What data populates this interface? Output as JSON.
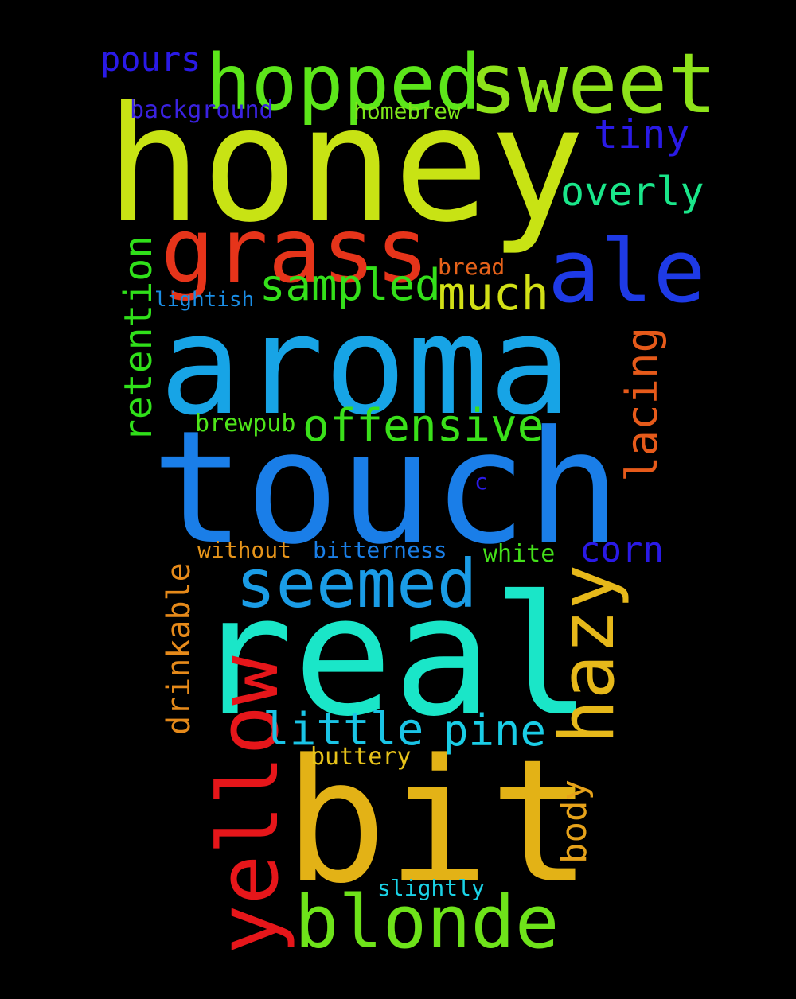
{
  "words": {
    "honey": {
      "text": "honey",
      "color": "#c8e314"
    },
    "aroma": {
      "text": "aroma",
      "color": "#17a4e6"
    },
    "touch": {
      "text": "touch",
      "color": "#1a7ee8"
    },
    "real": {
      "text": "real",
      "color": "#1ae6c8"
    },
    "bit": {
      "text": "bit",
      "color": "#e3b216"
    },
    "sweet": {
      "text": "sweet",
      "color": "#8ee31a"
    },
    "hopped": {
      "text": "hopped",
      "color": "#5ce61a"
    },
    "grass": {
      "text": "grass",
      "color": "#e6341a"
    },
    "ale": {
      "text": "ale",
      "color": "#1e3ae6"
    },
    "yellow": {
      "text": "yellow",
      "color": "#e6161a"
    },
    "blonde": {
      "text": "blonde",
      "color": "#6ee31a"
    },
    "seemed": {
      "text": "seemed",
      "color": "#1a9ce6"
    },
    "hazy": {
      "text": "hazy",
      "color": "#e6b81a"
    },
    "retention": {
      "text": "retention",
      "color": "#30e01a"
    },
    "offensive": {
      "text": "offensive",
      "color": "#3ae01a"
    },
    "lacing": {
      "text": "lacing",
      "color": "#e65a1a"
    },
    "sampled": {
      "text": "sampled",
      "color": "#34e01a"
    },
    "much": {
      "text": "much",
      "color": "#d2e016"
    },
    "little": {
      "text": "little",
      "color": "#1ac4e6"
    },
    "pine": {
      "text": "pine",
      "color": "#1acde6"
    },
    "overly": {
      "text": "overly",
      "color": "#1ae68a"
    },
    "tiny": {
      "text": "tiny",
      "color": "#2a1ae6"
    },
    "corn": {
      "text": "corn",
      "color": "#2a1ae6"
    },
    "drinkable": {
      "text": "drinkable",
      "color": "#e68a1a"
    },
    "body": {
      "text": "body",
      "color": "#e6a21a"
    },
    "pours": {
      "text": "pours",
      "color": "#2a1ae6"
    },
    "background": {
      "text": "background",
      "color": "#3a22e0"
    },
    "homebrew": {
      "text": "homebrew",
      "color": "#7ee61a"
    },
    "bread": {
      "text": "bread",
      "color": "#e6621a"
    },
    "lightish": {
      "text": "lightish",
      "color": "#1a8ee6"
    },
    "brewpub": {
      "text": "brewpub",
      "color": "#4ee61a"
    },
    "c": {
      "text": "c",
      "color": "#2a1ae6"
    },
    "without": {
      "text": "without",
      "color": "#e6941a"
    },
    "bitterness": {
      "text": "bitterness",
      "color": "#1a7ee6"
    },
    "white": {
      "text": "white",
      "color": "#44e01a"
    },
    "buttery": {
      "text": "buttery",
      "color": "#e6c21a"
    },
    "slightly": {
      "text": "slightly",
      "color": "#1ad2e6"
    }
  }
}
